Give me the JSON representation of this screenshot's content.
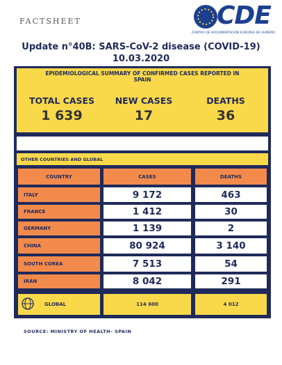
{
  "header": {
    "label": "FACTSHEET",
    "logo": "CDE",
    "logo_caption": "CENTRO DE DOCUMENTACIÓN EUROPEA DE ALMERÍA"
  },
  "title": {
    "line1": "Update n°40B: SARS-CoV-2 disease (COVID-19)",
    "line2": "10.03.2020"
  },
  "summary": {
    "heading": "EPIDEMIOLOGICAL SUMMARY OF CONFIRMED CASES REPORTED IN SPAIN",
    "stats": [
      {
        "label": "TOTAL CASES",
        "value": "1 639"
      },
      {
        "label": "NEW CASES",
        "value": "17"
      },
      {
        "label": "DEATHS",
        "value": "36"
      }
    ]
  },
  "table": {
    "section": "OTHER COUNTRIES AND GLOBAL",
    "columns": [
      "COUNTRY",
      "CASES",
      "DEATHS"
    ],
    "rows": [
      [
        "ITALY",
        "9 172",
        "463"
      ],
      [
        "FRANCE",
        "1 412",
        "30"
      ],
      [
        "GERMANY",
        "1 139",
        "2"
      ],
      [
        "CHINA",
        "80 924",
        "3 140"
      ],
      [
        "SOUTH COREA",
        "7 513",
        "54"
      ],
      [
        "IRÁN",
        "8 042",
        "291"
      ]
    ],
    "total": [
      "GLOBAL",
      "114 600",
      "4 012"
    ]
  },
  "source": "SOURCE: MINISTRY OF HEALTH- SPAIN"
}
